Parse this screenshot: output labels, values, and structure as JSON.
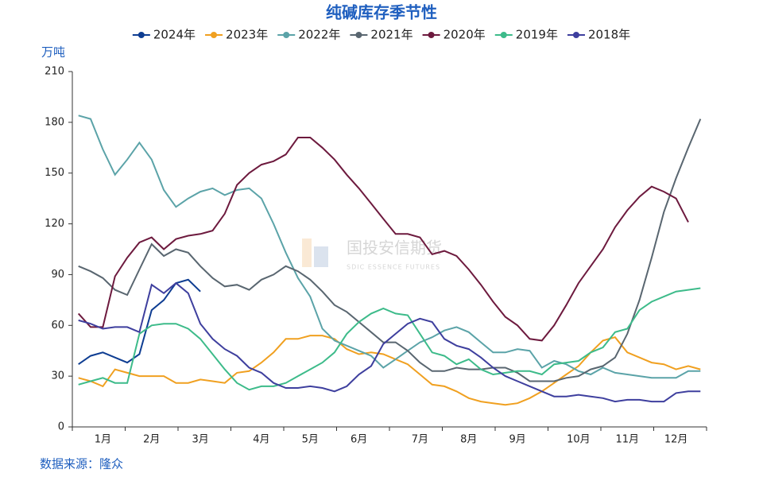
{
  "chart_data": {
    "type": "line",
    "title": "纯碱库存季节性",
    "y_label": "万吨",
    "source": "数据来源：隆众",
    "watermark": {
      "name": "国投安信期货",
      "subtitle": "SDIC ESSENCE FUTURES"
    },
    "categories": [
      null,
      null,
      "1月",
      null,
      null,
      null,
      "2月",
      null,
      null,
      null,
      "3月",
      null,
      null,
      null,
      null,
      "4月",
      null,
      null,
      null,
      "5月",
      null,
      null,
      null,
      "6月",
      null,
      null,
      null,
      null,
      "7月",
      null,
      null,
      null,
      "8月",
      null,
      null,
      null,
      "9月",
      null,
      null,
      null,
      null,
      "10月",
      null,
      null,
      null,
      "11月",
      null,
      null,
      null,
      "12月",
      null,
      null
    ],
    "ylim": [
      0,
      210
    ],
    "yticks": [
      0,
      30,
      60,
      90,
      120,
      150,
      180,
      210
    ],
    "grid": false,
    "legend": "top",
    "series": [
      {
        "name": "2024年",
        "color": "#0e3d92",
        "values": [
          37,
          42,
          44,
          41,
          38,
          43,
          69,
          75,
          85,
          87,
          80,
          null,
          null,
          null,
          null,
          null,
          null,
          null,
          null,
          null,
          null,
          null,
          null,
          null,
          null,
          null,
          null,
          null,
          null,
          null,
          null,
          null,
          null,
          null,
          null,
          null,
          null,
          null,
          null,
          null,
          null,
          null,
          null,
          null,
          null,
          null,
          null,
          null,
          null,
          null,
          null,
          null
        ]
      },
      {
        "name": "2023年",
        "color": "#f0a020",
        "values": [
          29,
          27,
          24,
          34,
          32,
          30,
          30,
          30,
          26,
          26,
          28,
          27,
          26,
          32,
          33,
          38,
          44,
          52,
          52,
          54,
          54,
          52,
          46,
          43,
          44,
          43,
          40,
          37,
          31,
          25,
          24,
          21,
          17,
          15,
          14,
          13,
          14,
          17,
          21,
          26,
          31,
          36,
          44,
          51,
          53,
          44,
          41,
          38,
          37,
          34,
          36,
          34
        ]
      },
      {
        "name": "2022年",
        "color": "#5ba3a8",
        "values": [
          184,
          182,
          164,
          149,
          158,
          168,
          158,
          140,
          130,
          135,
          139,
          141,
          137,
          140,
          141,
          135,
          120,
          103,
          88,
          77,
          58,
          51,
          48,
          45,
          42,
          35,
          40,
          45,
          50,
          53,
          57,
          59,
          56,
          50,
          44,
          44,
          46,
          45,
          35,
          39,
          37,
          33,
          31,
          35,
          32,
          31,
          30,
          29,
          29,
          29,
          33,
          33
        ]
      },
      {
        "name": "2021年",
        "color": "#596670",
        "values": [
          95,
          92,
          88,
          81,
          78,
          93,
          108,
          101,
          105,
          103,
          95,
          88,
          83,
          84,
          81,
          87,
          90,
          95,
          92,
          87,
          80,
          72,
          68,
          62,
          56,
          50,
          50,
          45,
          38,
          33,
          33,
          35,
          34,
          34,
          35,
          35,
          32,
          27,
          27,
          27,
          29,
          30,
          34,
          36,
          41,
          55,
          75,
          100,
          127,
          147,
          165,
          182
        ]
      },
      {
        "name": "2020年",
        "color": "#6d1a3e",
        "values": [
          67,
          59,
          59,
          89,
          100,
          109,
          112,
          105,
          111,
          113,
          114,
          116,
          126,
          143,
          150,
          155,
          157,
          161,
          171,
          171,
          165,
          158,
          149,
          141,
          132,
          123,
          114,
          114,
          112,
          102,
          104,
          101,
          93,
          84,
          74,
          65,
          60,
          52,
          51,
          60,
          72,
          85,
          95,
          105,
          118,
          128,
          136,
          142,
          139,
          135,
          121,
          null
        ]
      },
      {
        "name": "2019年",
        "color": "#3dbb8a",
        "values": [
          25,
          27,
          29,
          26,
          26,
          55,
          60,
          61,
          61,
          58,
          52,
          43,
          34,
          26,
          22,
          24,
          24,
          26,
          30,
          34,
          38,
          44,
          55,
          62,
          67,
          70,
          67,
          66,
          55,
          44,
          42,
          37,
          40,
          34,
          31,
          32,
          33,
          33,
          31,
          37,
          38,
          39,
          44,
          47,
          56,
          58,
          69,
          74,
          77,
          80,
          81,
          82
        ]
      },
      {
        "name": "2018年",
        "color": "#3e3f9e",
        "values": [
          63,
          61,
          58,
          59,
          59,
          56,
          84,
          79,
          85,
          79,
          61,
          52,
          46,
          42,
          35,
          32,
          26,
          23,
          23,
          24,
          23,
          21,
          24,
          31,
          36,
          49,
          55,
          61,
          64,
          62,
          52,
          48,
          46,
          41,
          35,
          30,
          27,
          24,
          21,
          18,
          18,
          19,
          18,
          17,
          15,
          16,
          16,
          15,
          15,
          20,
          21,
          21
        ]
      }
    ]
  }
}
